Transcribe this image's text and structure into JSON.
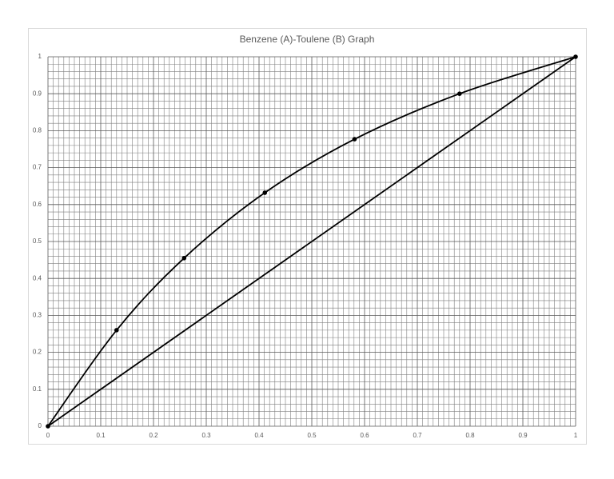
{
  "chart_data": {
    "type": "scatter",
    "title": "Benzene (A)-Toulene (B) Graph",
    "xlim": [
      0,
      1
    ],
    "ylim": [
      0,
      1
    ],
    "xticks": [
      0,
      0.1,
      0.2,
      0.3,
      0.4,
      0.5,
      0.6,
      0.7,
      0.8,
      0.9,
      1
    ],
    "yticks": [
      0,
      0.1,
      0.2,
      0.3,
      0.4,
      0.5,
      0.6,
      0.7,
      0.8,
      0.9,
      1
    ],
    "grid": true,
    "minor_grid": {
      "x": 10,
      "y": 5
    },
    "series": [
      {
        "color": "#000000",
        "markers": true,
        "smooth": true,
        "x": [
          0,
          0.13,
          0.258,
          0.411,
          0.581,
          0.78,
          1
        ],
        "values": [
          0,
          0.26,
          0.455,
          0.632,
          0.777,
          0.9,
          1
        ]
      },
      {
        "color": "#000000",
        "markers": false,
        "smooth": false,
        "x": [
          0,
          1
        ],
        "values": [
          0,
          1
        ]
      }
    ]
  }
}
